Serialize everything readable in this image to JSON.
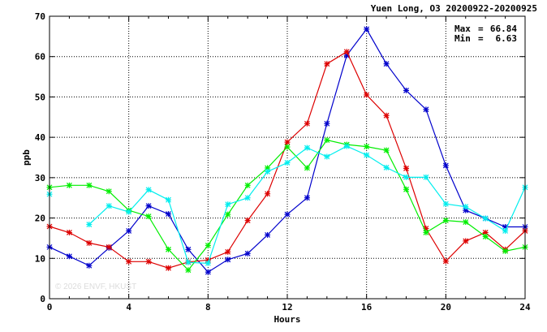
{
  "chart_data": {
    "type": "line",
    "title": "Yuen Long, O3 20200922-20200925",
    "xlabel": "Hours",
    "ylabel": "ppb",
    "xlim": [
      0,
      24
    ],
    "ylim": [
      0,
      70
    ],
    "xticks": [
      0,
      4,
      8,
      12,
      16,
      20,
      24
    ],
    "yticks": [
      0,
      10,
      20,
      30,
      40,
      50,
      60,
      70
    ],
    "grid": true,
    "stats": {
      "max_label": "Max",
      "max_value": "66.84",
      "min_label": "Min",
      "min_value": "6.63"
    },
    "watermark": "© 2026  ENVF, HKUST",
    "series": [
      {
        "color": "#0000cc",
        "values": [
          12.8,
          10.5,
          8.2,
          12.6,
          16.8,
          23.0,
          21.0,
          12.2,
          6.6,
          9.7,
          11.2,
          15.8,
          20.9,
          25.0,
          43.4,
          60.3,
          66.8,
          58.2,
          51.6,
          46.9,
          33.0,
          21.9,
          19.9,
          17.8,
          17.8
        ]
      },
      {
        "color": "#dd0000",
        "values": [
          17.9,
          16.4,
          13.8,
          12.8,
          9.2,
          9.2,
          7.6,
          9.1,
          9.6,
          11.6,
          19.4,
          26.0,
          38.8,
          43.4,
          58.2,
          61.2,
          50.5,
          45.4,
          32.3,
          17.4,
          9.3,
          14.3,
          16.4,
          12.2,
          16.8
        ]
      },
      {
        "color": "#00ee00",
        "values": [
          27.6,
          28.1,
          28.1,
          26.6,
          21.9,
          20.4,
          12.2,
          7.1,
          13.2,
          20.9,
          28.1,
          32.4,
          37.6,
          32.4,
          39.3,
          38.2,
          37.7,
          36.8,
          27.1,
          16.4,
          19.4,
          19.0,
          15.4,
          11.8,
          12.8
        ]
      },
      {
        "color": "#00eeee",
        "values": [
          25.9,
          null,
          18.4,
          23.0,
          21.5,
          27.0,
          24.5,
          9.0,
          8.8,
          23.4,
          25.0,
          31.5,
          33.7,
          37.4,
          35.2,
          37.8,
          35.6,
          32.5,
          30.1,
          30.1,
          23.5,
          22.8,
          19.9,
          16.8,
          27.6
        ]
      }
    ]
  }
}
